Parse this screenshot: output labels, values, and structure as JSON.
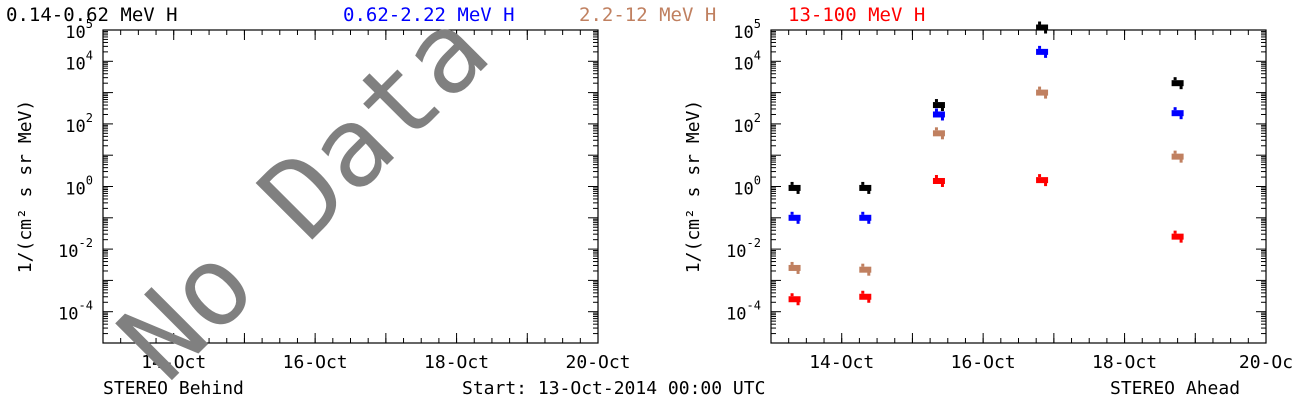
{
  "legend": [
    {
      "label": "0.14-0.62 MeV H",
      "color": "#000000"
    },
    {
      "label": "0.62-2.22 MeV H",
      "color": "#0000ff"
    },
    {
      "label": "2.2-12 MeV H",
      "color": "#c08060"
    },
    {
      "label": "13-100 MeV H",
      "color": "#ff0000"
    }
  ],
  "footer": {
    "left_label": "STEREO Behind",
    "start_label": "Start: 13-Oct-2014 00:00 UTC",
    "right_label": "STEREO Ahead"
  },
  "chart_data": [
    {
      "type": "scatter",
      "panel": "STEREO Behind",
      "ylabel": "1/(cm² s sr MeV)",
      "yscale": "log",
      "ylim": [
        1e-05,
        100000.0
      ],
      "xlim": [
        "13-Oct-2014",
        "20-Oct-2014"
      ],
      "x_tick_labels": [
        "14-Oct",
        "16-Oct",
        "18-Oct",
        "20-Oct"
      ],
      "y_tick_labels": [
        "10^5",
        "10^4",
        "10^2",
        "10^0",
        "10^-2",
        "10^-4"
      ],
      "overlay_text": "No Data",
      "series": []
    },
    {
      "type": "scatter",
      "panel": "STEREO Ahead",
      "ylabel": "1/(cm² s sr MeV)",
      "yscale": "log",
      "ylim": [
        1e-05,
        100000.0
      ],
      "xlim": [
        "13-Oct-2014",
        "20-Oct-2014"
      ],
      "x_tick_labels": [
        "14-Oct",
        "16-Oct",
        "18-Oct",
        "20-Oc"
      ],
      "y_tick_labels": [
        "10^5",
        "10^4",
        "10^2",
        "10^0",
        "10^-2",
        "10^-4"
      ],
      "series": [
        {
          "name": "0.14-0.62 MeV H",
          "color": "#000000",
          "points": [
            {
              "x": "13-Oct-2014 08:00",
              "y": 0.9
            },
            {
              "x": "14-Oct-2014 08:00",
              "y": 0.9
            },
            {
              "x": "15-Oct-2014 09:00",
              "y": 400
            },
            {
              "x": "16-Oct-2014 20:00",
              "y": 120000
            },
            {
              "x": "18-Oct-2014 18:00",
              "y": 2000
            }
          ]
        },
        {
          "name": "0.62-2.22 MeV H",
          "color": "#0000ff",
          "points": [
            {
              "x": "13-Oct-2014 08:00",
              "y": 0.1
            },
            {
              "x": "14-Oct-2014 08:00",
              "y": 0.1
            },
            {
              "x": "15-Oct-2014 09:00",
              "y": 200
            },
            {
              "x": "16-Oct-2014 20:00",
              "y": 20000
            },
            {
              "x": "18-Oct-2014 18:00",
              "y": 220
            }
          ]
        },
        {
          "name": "2.2-12 MeV H",
          "color": "#c08060",
          "points": [
            {
              "x": "13-Oct-2014 08:00",
              "y": 0.0025
            },
            {
              "x": "14-Oct-2014 08:00",
              "y": 0.0022
            },
            {
              "x": "15-Oct-2014 09:00",
              "y": 50
            },
            {
              "x": "16-Oct-2014 20:00",
              "y": 1000
            },
            {
              "x": "18-Oct-2014 18:00",
              "y": 9
            }
          ]
        },
        {
          "name": "13-100 MeV H",
          "color": "#ff0000",
          "points": [
            {
              "x": "13-Oct-2014 08:00",
              "y": 0.00025
            },
            {
              "x": "14-Oct-2014 08:00",
              "y": 0.0003
            },
            {
              "x": "15-Oct-2014 09:00",
              "y": 1.5
            },
            {
              "x": "16-Oct-2014 20:00",
              "y": 1.6
            },
            {
              "x": "18-Oct-2014 18:00",
              "y": 0.025
            }
          ]
        }
      ]
    }
  ]
}
